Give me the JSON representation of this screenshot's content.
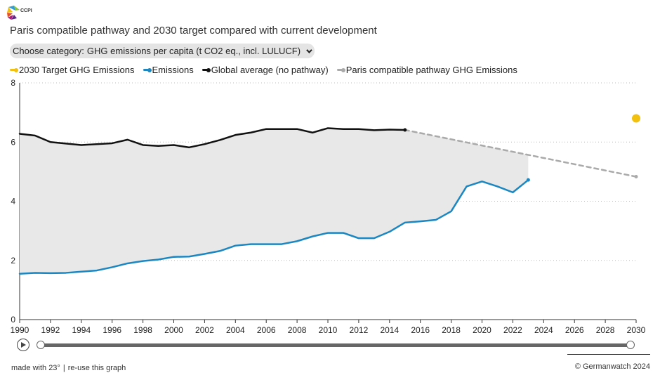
{
  "logo": {
    "text": "CCPI"
  },
  "title": "Paris compatible pathway and 2030 target compared with current development",
  "category": {
    "prefix": "Choose category:",
    "value": "GHG emissions per capita (t CO2 eq., incl. LULUCF)"
  },
  "colors": {
    "target": "#f2c10f",
    "emissions": "#1b87c2",
    "global": "#111111",
    "paris": "#aaaaaa",
    "area": "#e8e8e8"
  },
  "footer": {
    "made_with": "made with 23°",
    "reuse": "re-use this graph",
    "copyright": "© Germanwatch 2024"
  },
  "chart_data": {
    "type": "line",
    "ylim": [
      0,
      8
    ],
    "xlim": [
      1990,
      2030
    ],
    "yticks": [
      0,
      2,
      4,
      6,
      8
    ],
    "xticks": [
      1990,
      1992,
      1994,
      1996,
      1998,
      2000,
      2002,
      2004,
      2006,
      2008,
      2010,
      2012,
      2014,
      2016,
      2018,
      2020,
      2022,
      2024,
      2026,
      2028,
      2030
    ],
    "grid": "horizontal dotted",
    "legend_position": "top-left",
    "series": [
      {
        "name": "2030 Target GHG Emissions",
        "key": "target",
        "x": [
          2030
        ],
        "values": [
          6.8
        ]
      },
      {
        "name": "Emissions",
        "key": "emissions",
        "x": [
          1990,
          1991,
          1992,
          1993,
          1994,
          1995,
          1996,
          1997,
          1998,
          1999,
          2000,
          2001,
          2002,
          2003,
          2004,
          2005,
          2006,
          2007,
          2008,
          2009,
          2010,
          2011,
          2012,
          2013,
          2014,
          2015,
          2016,
          2017,
          2018,
          2019,
          2020,
          2021,
          2022,
          2023
        ],
        "values": [
          1.55,
          1.58,
          1.57,
          1.58,
          1.62,
          1.66,
          1.77,
          1.9,
          1.98,
          2.03,
          2.12,
          2.13,
          2.22,
          2.32,
          2.5,
          2.55,
          2.55,
          2.55,
          2.65,
          2.81,
          2.93,
          2.93,
          2.75,
          2.75,
          2.97,
          3.28,
          3.32,
          3.37,
          3.66,
          4.5,
          4.67,
          4.5,
          4.3,
          4.72
        ]
      },
      {
        "name": "Global average (no pathway)",
        "key": "global",
        "x": [
          1990,
          1991,
          1992,
          1993,
          1994,
          1995,
          1996,
          1997,
          1998,
          1999,
          2000,
          2001,
          2002,
          2003,
          2004,
          2005,
          2006,
          2007,
          2008,
          2009,
          2010,
          2011,
          2012,
          2013,
          2014,
          2015
        ],
        "values": [
          6.28,
          6.22,
          6.0,
          5.95,
          5.9,
          5.93,
          5.96,
          6.08,
          5.9,
          5.87,
          5.9,
          5.82,
          5.93,
          6.07,
          6.24,
          6.32,
          6.44,
          6.44,
          6.44,
          6.32,
          6.47,
          6.44,
          6.44,
          6.4,
          6.42,
          6.41
        ]
      },
      {
        "name": "Paris compatible pathway GHG Emissions",
        "key": "paris",
        "x": [
          2015,
          2030
        ],
        "values": [
          6.41,
          4.83
        ]
      }
    ]
  }
}
